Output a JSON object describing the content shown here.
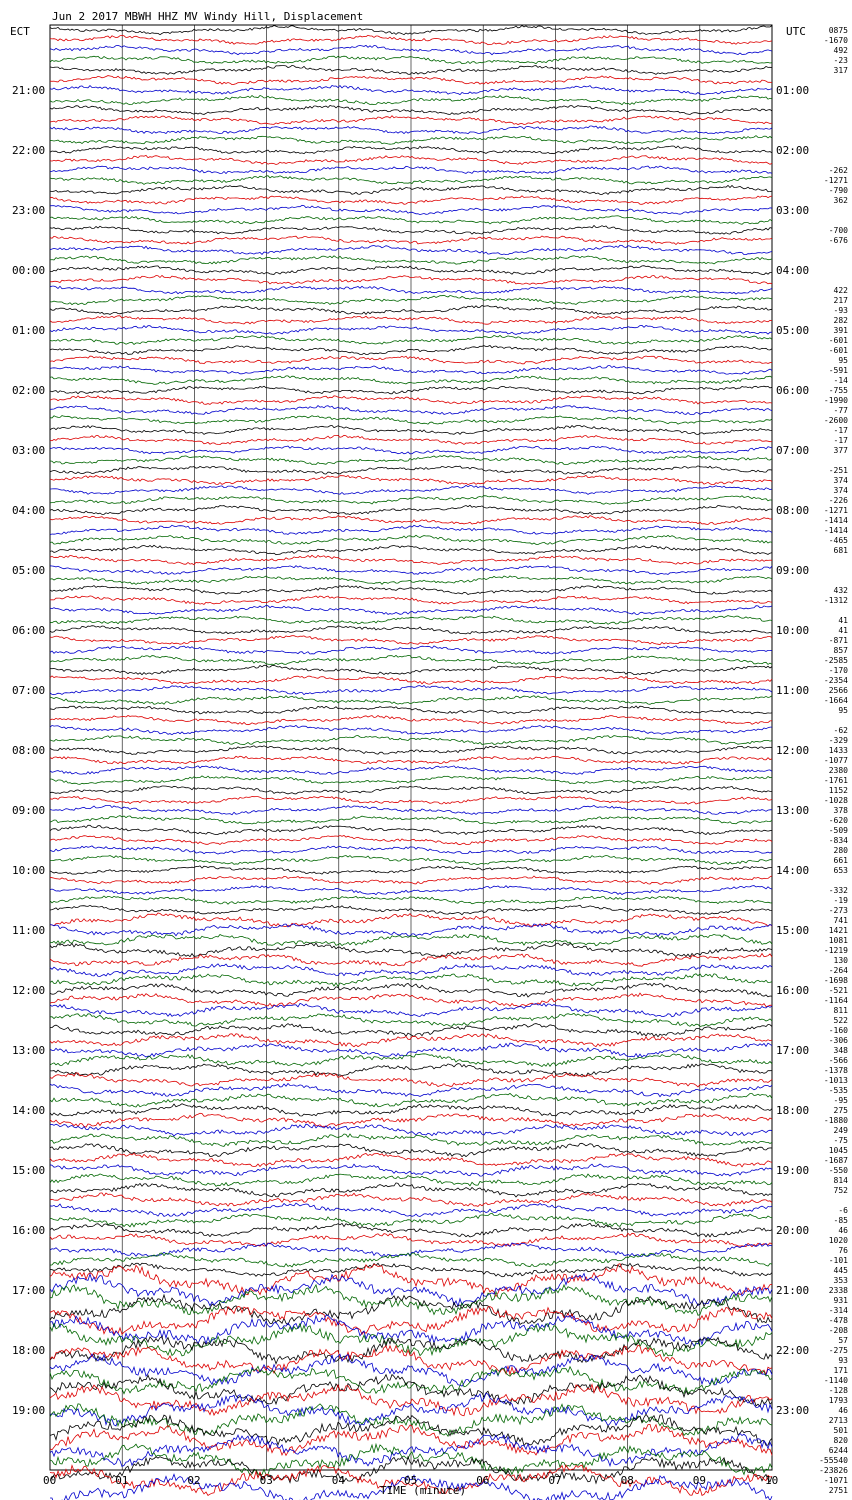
{
  "title": "Jun  2 2017 MBWH HHZ MV Windy Hill, Displacement",
  "left_axis_title": "ECT",
  "right_axis_title": "UTC",
  "xlabel": "TIME (minute)",
  "chart_data": {
    "type": "line",
    "title": "Jun  2 2017 MBWH HHZ MV Windy Hill, Displacement",
    "xlabel": "TIME (minute)",
    "x_range": [
      0,
      10
    ],
    "x_ticks": [
      "00",
      "01",
      "02",
      "03",
      "04",
      "05",
      "06",
      "07",
      "08",
      "09",
      "10"
    ],
    "grid": "vertical lines at each minute",
    "rows_per_hour": 6,
    "hours_shown": 24,
    "trace_color_cycle": [
      "#000000",
      "#dd0000",
      "#0000cc",
      "#006600"
    ],
    "ect_hour_labels": [
      "21:00",
      "22:00",
      "23:00",
      "00:00",
      "01:00",
      "02:00",
      "03:00",
      "04:00",
      "05:00",
      "06:00",
      "07:00",
      "08:00",
      "09:00",
      "10:00",
      "11:00",
      "12:00",
      "13:00",
      "14:00",
      "15:00",
      "16:00",
      "17:00",
      "18:00",
      "19:00"
    ],
    "utc_hour_labels": [
      "01:00",
      "02:00",
      "03:00",
      "04:00",
      "05:00",
      "06:00",
      "07:00",
      "08:00",
      "09:00",
      "10:00",
      "11:00",
      "12:00",
      "13:00",
      "14:00",
      "15:00",
      "16:00",
      "17:00",
      "18:00",
      "19:00",
      "20:00",
      "21:00",
      "22:00",
      "23:00"
    ],
    "trace_offsets": [
      "0875",
      "-1670",
      "492",
      "-23",
      "317",
      "",
      "",
      "",
      "",
      "",
      "",
      "",
      "",
      "",
      "-262",
      "-1271",
      "-790",
      "362",
      "",
      "",
      "-700",
      "-676",
      "",
      "",
      "",
      "",
      "422",
      "217",
      "-93",
      "282",
      "391",
      "-601",
      "-601",
      "95",
      "-591",
      "-14",
      "-755",
      "-1990",
      "-77",
      "-2600",
      "-17",
      "-17",
      "377",
      "",
      "-251",
      "374",
      "374",
      "-226",
      "-1271",
      "-1414",
      "-1414",
      "-465",
      "681",
      "",
      "",
      "",
      "432",
      "-1312",
      "",
      "41",
      "41",
      "-871",
      "857",
      "-2585",
      "-170",
      "-2354",
      "2566",
      "-1664",
      "95",
      "",
      "-62",
      "-329",
      "1433",
      "-1077",
      "2380",
      "-1761",
      "1152",
      "-1028",
      "378",
      "-620",
      "-509",
      "-834",
      "280",
      "661",
      "653",
      "",
      "-332",
      "-19",
      "-273",
      "741",
      "1421",
      "1081",
      "-1219",
      "130",
      "-264",
      "-1698",
      "-521",
      "-1164",
      "811",
      "522",
      "-160",
      "-306",
      "348",
      "-566",
      "-1378",
      "-1013",
      "-535",
      "-95",
      "275",
      "-1880",
      "249",
      "-75",
      "1045",
      "-1687",
      "-550",
      "814",
      "752",
      "",
      "-6",
      "-85",
      "46",
      "1020",
      "76",
      "-101",
      "445",
      "353",
      "2338",
      "931",
      "-314",
      "-478",
      "-208",
      "57",
      "-275",
      "93",
      "171",
      "-1140",
      "-128",
      "1793",
      "46",
      "2713",
      "501",
      "820",
      "6244",
      "-55540",
      "-23826",
      "-1071",
      "2751"
    ]
  }
}
